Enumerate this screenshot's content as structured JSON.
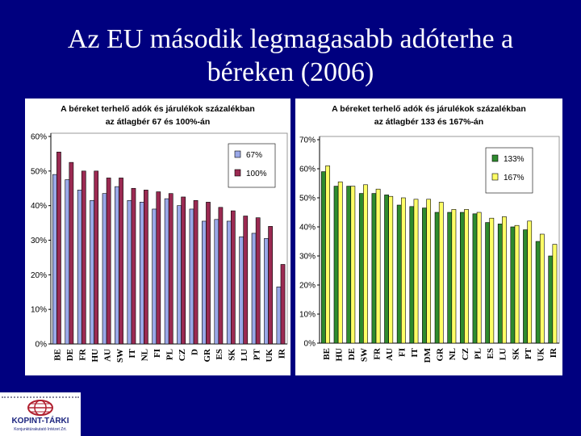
{
  "slide": {
    "title_line1": "Az EU második legmagasabb adóterhe a",
    "title_line2": "béreken (2006)",
    "logo_name": "KOPINT-TÁRKI",
    "logo_sub": "Konjunktúrakutató Intézet Zrt."
  },
  "chart_data": [
    {
      "type": "bar",
      "title": "A béreket terhelő adók és járulékok százalékban az átlagbér 67 és 100%-án",
      "categories": [
        "BE",
        "DE",
        "FR",
        "HU",
        "AU",
        "SW",
        "IT",
        "NL",
        "FI",
        "PL",
        "CZ",
        "D",
        "GR",
        "ES",
        "SK",
        "LU",
        "PT",
        "UK",
        "IR"
      ],
      "series": [
        {
          "name": "67%",
          "color": "#9aa8e8",
          "values": [
            49,
            47.5,
            44.5,
            41.5,
            43.5,
            45.5,
            41.5,
            41,
            39,
            42,
            40,
            39,
            35.5,
            36,
            35.5,
            31,
            32,
            30.5,
            16.5
          ]
        },
        {
          "name": "100%",
          "color": "#9b2a52",
          "values": [
            55.5,
            52.5,
            50,
            50,
            48,
            48,
            45,
            44.5,
            44,
            43.5,
            42.5,
            41.5,
            41,
            39.5,
            38.5,
            37,
            36.5,
            34,
            23
          ]
        }
      ],
      "ylim": [
        0,
        60
      ],
      "yticks": [
        "0%",
        "10%",
        "20%",
        "30%",
        "40%",
        "50%",
        "60%"
      ],
      "legend": "top-right",
      "grid": false
    },
    {
      "type": "bar",
      "title": "A béreket terhelő adók és járulékok százalékban az átlagbér 133 és 167%-án",
      "categories": [
        "BE",
        "HU",
        "DE",
        "SW",
        "FR",
        "AU",
        "FI",
        "IT",
        "DM",
        "GR",
        "NL",
        "CZ",
        "PL",
        "ES",
        "LU",
        "SK",
        "PT",
        "UK",
        "IR"
      ],
      "series": [
        {
          "name": "133%",
          "color": "#2e8b2e",
          "values": [
            59,
            54,
            54,
            51.5,
            51.5,
            51,
            47.5,
            47,
            46.5,
            45,
            45,
            45,
            44.5,
            41.5,
            41,
            40,
            39,
            35,
            30
          ]
        },
        {
          "name": "167%",
          "color": "#ffff66",
          "values": [
            61,
            55.5,
            54,
            54.5,
            53,
            50.5,
            50,
            49.5,
            49.5,
            48.5,
            46,
            46,
            45,
            43,
            43.5,
            40.5,
            42,
            37.5,
            34
          ]
        }
      ],
      "ylim": [
        0,
        70
      ],
      "yticks": [
        "0%",
        "10%",
        "20%",
        "30%",
        "40%",
        "50%",
        "60%",
        "70%"
      ],
      "legend": "top-right",
      "grid": false
    }
  ]
}
